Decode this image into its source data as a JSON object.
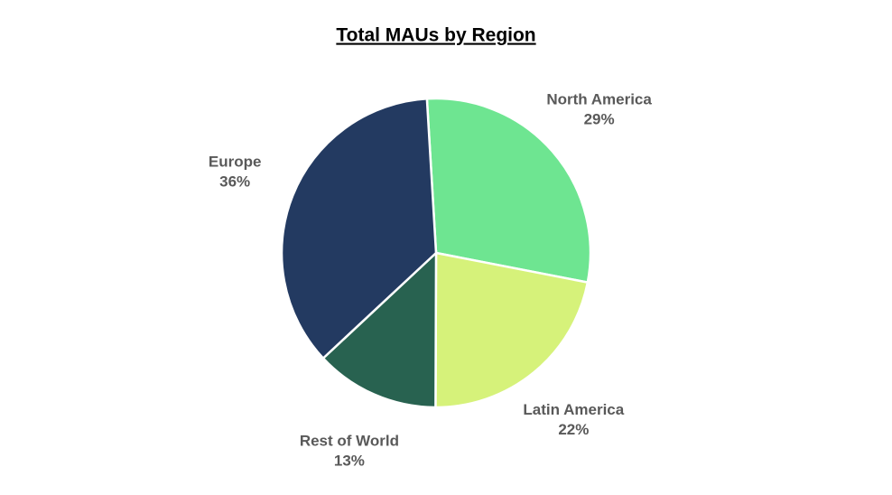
{
  "chart_data": {
    "type": "pie",
    "title": "Total MAUs by Region",
    "categories": [
      "North America",
      "Latin America",
      "Rest of World",
      "Europe"
    ],
    "values": [
      29,
      22,
      13,
      36
    ],
    "value_labels": [
      "29%",
      "22%",
      "13%",
      "36%"
    ],
    "colors": [
      "#6ee591",
      "#d6f27a",
      "#286250",
      "#233a61"
    ]
  }
}
